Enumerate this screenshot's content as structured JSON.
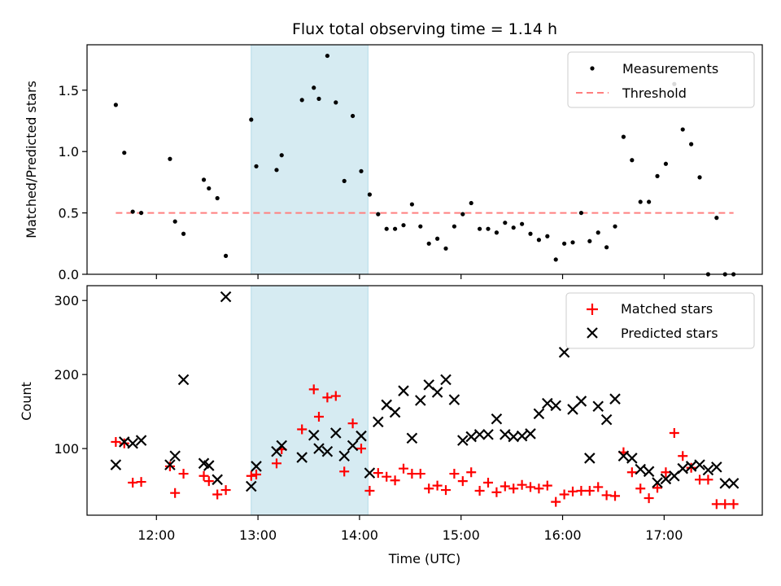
{
  "chart_data": [
    {
      "type": "scatter",
      "title": "Flux total observing time = 1.14 h",
      "ylabel": "Matched/Predicted stars",
      "xlabel": "",
      "xlim": [
        "11:19",
        "17:58"
      ],
      "ylim": [
        0,
        1.87
      ],
      "yticks": [
        0.0,
        0.5,
        1.0,
        1.5
      ],
      "ytick_labels": [
        "0.0",
        "0.5",
        "1.0",
        "1.5"
      ],
      "legend_position": "top-right",
      "colors": {
        "measurements": "#000000",
        "threshold": "#ff7f7f",
        "highlight": "#add8e6"
      },
      "highlight_span": {
        "start": "12:56",
        "end": "14:05"
      },
      "series": [
        {
          "name": "Measurements",
          "kind": "points",
          "x": [
            "11:36",
            "11:41",
            "11:46",
            "11:51",
            "12:08",
            "12:11",
            "12:16",
            "12:28",
            "12:31",
            "12:36",
            "12:41",
            "12:56",
            "12:59",
            "13:11",
            "13:14",
            "13:26",
            "13:33",
            "13:36",
            "13:41",
            "13:46",
            "13:51",
            "13:56",
            "14:01",
            "14:06",
            "14:11",
            "14:16",
            "14:21",
            "14:26",
            "14:31",
            "14:36",
            "14:41",
            "14:46",
            "14:51",
            "14:56",
            "15:01",
            "15:06",
            "15:11",
            "15:16",
            "15:21",
            "15:26",
            "15:31",
            "15:36",
            "15:41",
            "15:46",
            "15:51",
            "15:56",
            "16:01",
            "16:06",
            "16:11",
            "16:16",
            "16:21",
            "16:26",
            "16:31",
            "16:36",
            "16:41",
            "16:46",
            "16:51",
            "16:56",
            "17:01",
            "17:06",
            "17:11",
            "17:16",
            "17:21",
            "17:26",
            "17:31",
            "17:36",
            "17:41"
          ],
          "y": [
            1.38,
            0.99,
            0.51,
            0.5,
            0.94,
            0.43,
            0.33,
            0.77,
            0.7,
            0.62,
            0.15,
            1.26,
            0.88,
            0.85,
            0.97,
            1.42,
            1.52,
            1.43,
            1.78,
            1.4,
            0.76,
            1.29,
            0.84,
            0.65,
            0.49,
            0.37,
            0.37,
            0.4,
            0.57,
            0.39,
            0.25,
            0.29,
            0.21,
            0.39,
            0.49,
            0.58,
            0.37,
            0.37,
            0.34,
            0.42,
            0.38,
            0.41,
            0.33,
            0.28,
            0.31,
            0.12,
            0.25,
            0.26,
            0.5,
            0.27,
            0.34,
            0.22,
            0.39,
            1.12,
            0.93,
            0.59,
            0.59,
            0.8,
            0.9,
            1.55,
            1.18,
            1.06,
            0.79,
            0.0,
            0.46,
            0.0,
            0.0
          ]
        },
        {
          "name": "Threshold",
          "kind": "dashed-line",
          "x": [
            "11:36",
            "17:41"
          ],
          "y": [
            0.5,
            0.5
          ]
        }
      ]
    },
    {
      "type": "scatter",
      "title": "",
      "ylabel": "Count",
      "xlabel": "Time (UTC)",
      "xlim": [
        "11:19",
        "17:58"
      ],
      "ylim": [
        10,
        320
      ],
      "yticks": [
        100,
        200,
        300
      ],
      "ytick_labels": [
        "100",
        "200",
        "300"
      ],
      "xticks": [
        "12:00",
        "13:00",
        "14:00",
        "15:00",
        "16:00",
        "17:00"
      ],
      "legend_position": "top-right",
      "colors": {
        "matched": "#ff0000",
        "predicted": "#000000",
        "highlight": "#add8e6"
      },
      "highlight_span": {
        "start": "12:56",
        "end": "14:05"
      },
      "series": [
        {
          "name": "Matched stars",
          "kind": "plus",
          "x": [
            "11:36",
            "11:41",
            "11:46",
            "11:51",
            "12:08",
            "12:11",
            "12:16",
            "12:28",
            "12:31",
            "12:36",
            "12:41",
            "12:56",
            "12:59",
            "13:11",
            "13:14",
            "13:26",
            "13:33",
            "13:36",
            "13:41",
            "13:46",
            "13:51",
            "13:56",
            "14:01",
            "14:06",
            "14:11",
            "14:16",
            "14:21",
            "14:26",
            "14:31",
            "14:36",
            "14:41",
            "14:46",
            "14:51",
            "14:56",
            "15:01",
            "15:06",
            "15:11",
            "15:16",
            "15:21",
            "15:26",
            "15:31",
            "15:36",
            "15:41",
            "15:46",
            "15:51",
            "15:56",
            "16:01",
            "16:06",
            "16:11",
            "16:16",
            "16:21",
            "16:26",
            "16:31",
            "16:36",
            "16:41",
            "16:46",
            "16:51",
            "16:56",
            "17:01",
            "17:06",
            "17:11",
            "17:16",
            "17:21",
            "17:26",
            "17:31",
            "17:36",
            "17:41"
          ],
          "y": [
            109,
            107,
            54,
            55,
            76,
            40,
            66,
            63,
            56,
            38,
            44,
            63,
            65,
            80,
            99,
            126,
            180,
            143,
            169,
            171,
            69,
            134,
            100,
            43,
            67,
            62,
            57,
            73,
            66,
            66,
            46,
            50,
            44,
            66,
            56,
            68,
            43,
            54,
            41,
            49,
            46,
            51,
            48,
            46,
            50,
            28,
            38,
            42,
            43,
            43,
            48,
            37,
            36,
            95,
            68,
            46,
            33,
            47,
            68,
            121,
            90,
            74,
            58,
            58,
            25,
            25,
            25
          ]
        },
        {
          "name": "Predicted stars",
          "kind": "x",
          "x": [
            "11:36",
            "11:41",
            "11:46",
            "11:51",
            "12:08",
            "12:11",
            "12:16",
            "12:28",
            "12:31",
            "12:36",
            "12:41",
            "12:56",
            "12:59",
            "13:11",
            "13:14",
            "13:26",
            "13:33",
            "13:36",
            "13:41",
            "13:46",
            "13:51",
            "13:56",
            "14:01",
            "14:06",
            "14:11",
            "14:16",
            "14:21",
            "14:26",
            "14:31",
            "14:36",
            "14:41",
            "14:46",
            "14:51",
            "14:56",
            "15:01",
            "15:06",
            "15:11",
            "15:16",
            "15:21",
            "15:26",
            "15:31",
            "15:36",
            "15:41",
            "15:46",
            "15:51",
            "15:56",
            "16:01",
            "16:06",
            "16:11",
            "16:16",
            "16:21",
            "16:26",
            "16:31",
            "16:36",
            "16:41",
            "16:46",
            "16:51",
            "16:56",
            "17:01",
            "17:06",
            "17:11",
            "17:16",
            "17:21",
            "17:26",
            "17:31",
            "17:36",
            "17:41"
          ],
          "y": [
            78,
            109,
            107,
            111,
            78,
            90,
            193,
            80,
            77,
            58,
            305,
            49,
            76,
            96,
            104,
            88,
            118,
            100,
            96,
            121,
            90,
            104,
            117,
            67,
            136,
            159,
            149,
            178,
            114,
            165,
            186,
            176,
            193,
            166,
            111,
            116,
            119,
            119,
            140,
            119,
            116,
            117,
            120,
            147,
            161,
            158,
            230,
            153,
            164,
            87,
            157,
            139,
            167,
            90,
            87,
            72,
            69,
            54,
            59,
            63,
            73,
            76,
            78,
            71,
            75,
            53,
            53
          ]
        }
      ]
    }
  ]
}
